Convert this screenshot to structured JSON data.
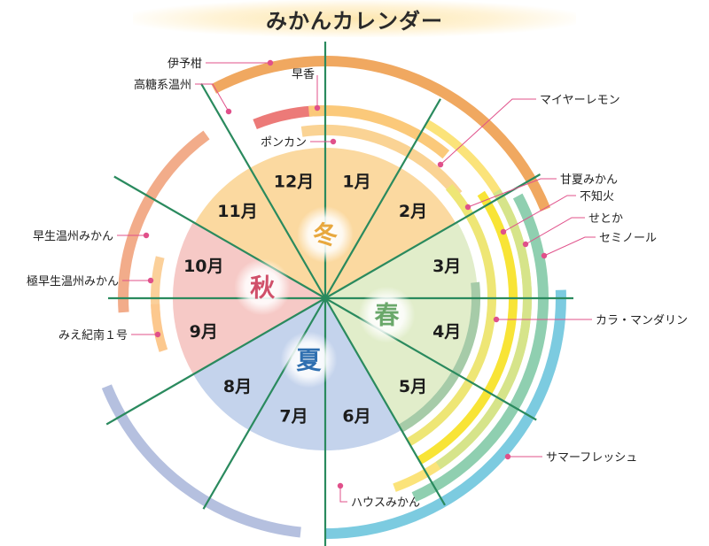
{
  "title": "みかんカレンダー",
  "months": [
    "1月",
    "2月",
    "3月",
    "4月",
    "5月",
    "6月",
    "7月",
    "8月",
    "9月",
    "10月",
    "11月",
    "12月"
  ],
  "seasons": {
    "winter": {
      "label": "冬",
      "color": "#e8a83e",
      "fill": "#fbd9a0"
    },
    "spring": {
      "label": "春",
      "color": "#6aa86a",
      "fill": "#e1edca"
    },
    "summer": {
      "label": "夏",
      "color": "#2f6fb0",
      "fill": "#c4d3ec"
    },
    "autumn": {
      "label": "秋",
      "color": "#d0506a",
      "fill": "#f6c9c6"
    }
  },
  "varieties": [
    {
      "name": "伊予柑",
      "color": "#f0a860"
    },
    {
      "name": "高糖系温州",
      "color": "#ec7a78"
    },
    {
      "name": "早香",
      "color": "#fbc97a"
    },
    {
      "name": "ポンカン",
      "color": "#fad394"
    },
    {
      "name": "マイヤーレモン",
      "color": "#fbe37a"
    },
    {
      "name": "甘夏みかん",
      "color": "#eee675"
    },
    {
      "name": "不知火",
      "color": "#f8e436"
    },
    {
      "name": "せとか",
      "color": "#d6e48a"
    },
    {
      "name": "セミノール",
      "color": "#8fcfb0"
    },
    {
      "name": "カラ・マンダリン",
      "color": "#a6cba8"
    },
    {
      "name": "サマーフレッシュ",
      "color": "#7ccbe0"
    },
    {
      "name": "ハウスみかん",
      "color": "#b5c0df"
    },
    {
      "name": "早生温州みかん",
      "color": "#f2ac8a"
    },
    {
      "name": "極早生温州みかん",
      "color": "#fbd09a"
    },
    {
      "name": "みえ紀南１号",
      "color": "#fcc88e"
    }
  ],
  "colors": {
    "divider": "#2a8a5e",
    "leader": "#e0508a"
  }
}
